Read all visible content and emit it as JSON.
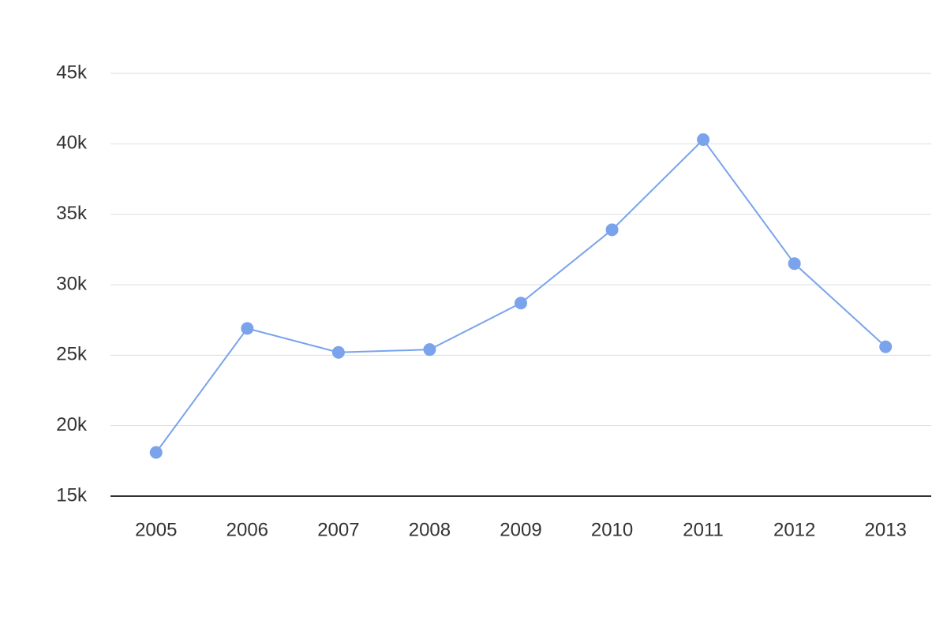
{
  "chart_data": {
    "type": "line",
    "categories": [
      "2005",
      "2006",
      "2007",
      "2008",
      "2009",
      "2010",
      "2011",
      "2012",
      "2013"
    ],
    "values": [
      18100,
      26900,
      25200,
      25400,
      28700,
      33900,
      40300,
      31500,
      25600
    ],
    "color": "#7aa3ec",
    "ylim": [
      15000,
      45000
    ],
    "yticks": [
      {
        "value": 15000,
        "label": "15k"
      },
      {
        "value": 20000,
        "label": "20k"
      },
      {
        "value": 25000,
        "label": "25k"
      },
      {
        "value": 30000,
        "label": "30k"
      },
      {
        "value": 35000,
        "label": "35k"
      },
      {
        "value": 40000,
        "label": "40k"
      },
      {
        "value": 45000,
        "label": "45k"
      }
    ],
    "grid": true
  }
}
